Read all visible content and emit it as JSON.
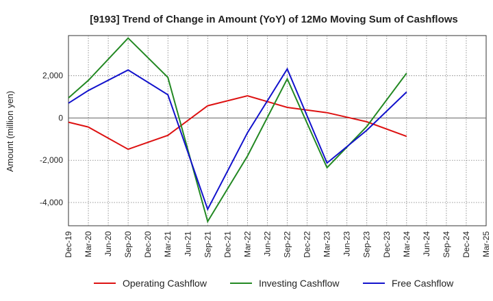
{
  "chart_data": {
    "type": "line",
    "title": "[9193]  Trend of Change in Amount (YoY) of 12Mo Moving Sum of Cashflows",
    "xlabel": "",
    "ylabel": "Amount (million yen)",
    "ylim": [
      -5100,
      3900
    ],
    "yticks": [
      2000,
      0,
      -2000,
      -4000
    ],
    "ytick_labels": [
      "2,000",
      "0",
      "-2,000",
      "-4,000"
    ],
    "categories": [
      "Dec-19",
      "Mar-20",
      "Jun-20",
      "Sep-20",
      "Dec-20",
      "Mar-21",
      "Jun-21",
      "Sep-21",
      "Dec-21",
      "Mar-22",
      "Jun-22",
      "Sep-22",
      "Dec-22",
      "Mar-23",
      "Jun-23",
      "Sep-23",
      "Dec-23",
      "Mar-24",
      "Jun-24",
      "Sep-24",
      "Dec-24",
      "Mar-25"
    ],
    "grid": true,
    "legend_position": "bottom",
    "series": [
      {
        "name": "Operating Cashflow",
        "color": "#dd1111",
        "values": [
          -200,
          -430,
          null,
          -1480,
          null,
          -820,
          null,
          580,
          null,
          1050,
          null,
          500,
          null,
          250,
          null,
          -180,
          null,
          -870,
          null,
          null,
          null,
          null
        ]
      },
      {
        "name": "Investing Cashflow",
        "color": "#228822",
        "values": [
          950,
          1780,
          null,
          3780,
          null,
          1920,
          null,
          -4900,
          null,
          -1800,
          null,
          1850,
          null,
          -2350,
          null,
          -400,
          null,
          2120,
          null,
          null,
          null,
          null
        ]
      },
      {
        "name": "Free Cashflow",
        "color": "#1111cc",
        "values": [
          700,
          1300,
          null,
          2270,
          null,
          1100,
          null,
          -4320,
          null,
          -700,
          null,
          2320,
          null,
          -2130,
          null,
          -580,
          null,
          1230,
          null,
          null,
          null,
          null
        ]
      }
    ]
  }
}
